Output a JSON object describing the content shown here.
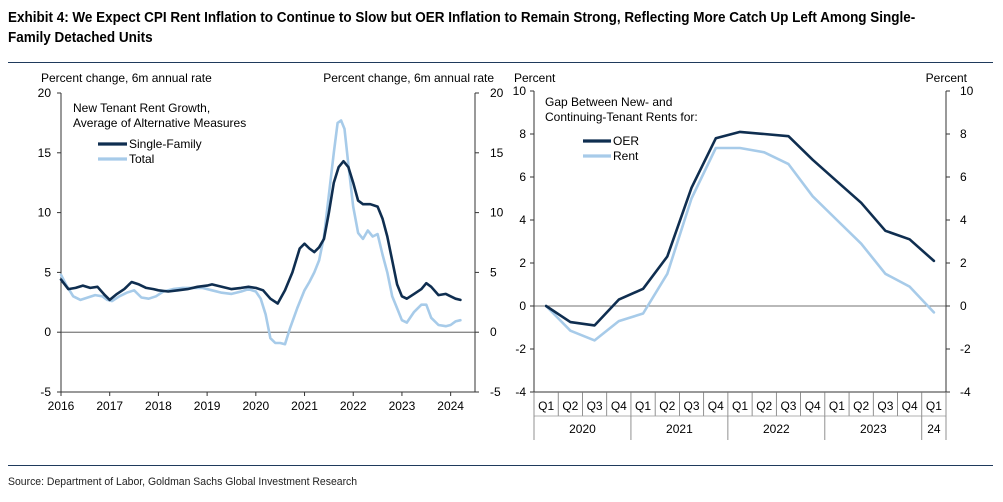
{
  "header": {
    "title": "Exhibit 4: We Expect CPI Rent Inflation to Continue to Slow but OER Inflation to Remain Strong, Reflecting More Catch Up Left Among Single-Family Detached Units"
  },
  "footer": {
    "source": "Source: Department of Labor, Goldman Sachs Global Investment Research"
  },
  "colors": {
    "dark_navy": "#0f2e50",
    "light_blue": "#a7cbe9",
    "rule": "#1f3a5c"
  },
  "chart_data": [
    {
      "type": "line",
      "title": "New Tenant Rent Growth,\nAverage of Alternative Measures",
      "title_lines": [
        "New Tenant Rent Growth,",
        "Average of Alternative Measures"
      ],
      "ylabel_left": "Percent change, 6m annual rate",
      "ylabel_right": "Percent change, 6m annual rate",
      "ylim": [
        -5,
        20
      ],
      "yticks": [
        -5,
        0,
        5,
        10,
        15,
        20
      ],
      "yticks_right": [
        -5,
        0,
        5,
        10,
        15,
        20
      ],
      "xlim": [
        2016,
        2024.5
      ],
      "xticks": [
        "2016",
        "2017",
        "2018",
        "2019",
        "2020",
        "2021",
        "2022",
        "2023",
        "2024"
      ],
      "grid": false,
      "legend_position": "top-left",
      "series": [
        {
          "name": "Single-Family",
          "color": "#0f2e50",
          "points": [
            [
              2016.0,
              4.4
            ],
            [
              2016.15,
              3.6
            ],
            [
              2016.3,
              3.7
            ],
            [
              2016.45,
              3.9
            ],
            [
              2016.6,
              3.7
            ],
            [
              2016.75,
              3.8
            ],
            [
              2016.9,
              3.1
            ],
            [
              2017.0,
              2.7
            ],
            [
              2017.15,
              3.2
            ],
            [
              2017.3,
              3.6
            ],
            [
              2017.45,
              4.2
            ],
            [
              2017.6,
              4.0
            ],
            [
              2017.75,
              3.7
            ],
            [
              2017.9,
              3.6
            ],
            [
              2018.0,
              3.5
            ],
            [
              2018.2,
              3.4
            ],
            [
              2018.4,
              3.5
            ],
            [
              2018.6,
              3.6
            ],
            [
              2018.8,
              3.8
            ],
            [
              2019.0,
              3.9
            ],
            [
              2019.1,
              4.0
            ],
            [
              2019.3,
              3.8
            ],
            [
              2019.5,
              3.6
            ],
            [
              2019.7,
              3.7
            ],
            [
              2019.85,
              3.8
            ],
            [
              2020.0,
              3.7
            ],
            [
              2020.15,
              3.5
            ],
            [
              2020.3,
              2.8
            ],
            [
              2020.45,
              2.4
            ],
            [
              2020.6,
              3.5
            ],
            [
              2020.75,
              5.0
            ],
            [
              2020.9,
              7.0
            ],
            [
              2021.0,
              7.4
            ],
            [
              2021.1,
              7.0
            ],
            [
              2021.2,
              6.7
            ],
            [
              2021.3,
              7.1
            ],
            [
              2021.4,
              7.8
            ],
            [
              2021.5,
              10.0
            ],
            [
              2021.6,
              12.5
            ],
            [
              2021.7,
              13.8
            ],
            [
              2021.8,
              14.3
            ],
            [
              2021.9,
              13.8
            ],
            [
              2022.0,
              12.5
            ],
            [
              2022.1,
              11.0
            ],
            [
              2022.2,
              10.7
            ],
            [
              2022.35,
              10.7
            ],
            [
              2022.5,
              10.5
            ],
            [
              2022.6,
              9.5
            ],
            [
              2022.7,
              8.0
            ],
            [
              2022.8,
              6.0
            ],
            [
              2022.9,
              4.0
            ],
            [
              2023.0,
              3.0
            ],
            [
              2023.1,
              2.8
            ],
            [
              2023.25,
              3.2
            ],
            [
              2023.4,
              3.6
            ],
            [
              2023.5,
              4.1
            ],
            [
              2023.6,
              3.8
            ],
            [
              2023.75,
              3.1
            ],
            [
              2023.9,
              3.2
            ],
            [
              2024.0,
              3.0
            ],
            [
              2024.1,
              2.8
            ],
            [
              2024.2,
              2.7
            ]
          ]
        },
        {
          "name": "Total",
          "color": "#a7cbe9",
          "points": [
            [
              2016.0,
              4.8
            ],
            [
              2016.1,
              4.0
            ],
            [
              2016.25,
              3.0
            ],
            [
              2016.4,
              2.7
            ],
            [
              2016.55,
              2.9
            ],
            [
              2016.7,
              3.1
            ],
            [
              2016.85,
              3.0
            ],
            [
              2016.95,
              2.7
            ],
            [
              2017.05,
              2.6
            ],
            [
              2017.2,
              3.0
            ],
            [
              2017.35,
              3.3
            ],
            [
              2017.5,
              3.5
            ],
            [
              2017.65,
              2.9
            ],
            [
              2017.8,
              2.8
            ],
            [
              2017.95,
              3.0
            ],
            [
              2018.1,
              3.4
            ],
            [
              2018.3,
              3.6
            ],
            [
              2018.5,
              3.7
            ],
            [
              2018.7,
              3.7
            ],
            [
              2018.9,
              3.7
            ],
            [
              2019.1,
              3.5
            ],
            [
              2019.3,
              3.3
            ],
            [
              2019.5,
              3.2
            ],
            [
              2019.7,
              3.4
            ],
            [
              2019.85,
              3.6
            ],
            [
              2020.0,
              3.4
            ],
            [
              2020.1,
              2.8
            ],
            [
              2020.2,
              1.5
            ],
            [
              2020.3,
              -0.5
            ],
            [
              2020.4,
              -0.9
            ],
            [
              2020.5,
              -0.9
            ],
            [
              2020.6,
              -1.0
            ],
            [
              2020.7,
              0.3
            ],
            [
              2020.85,
              2.0
            ],
            [
              2021.0,
              3.5
            ],
            [
              2021.1,
              4.2
            ],
            [
              2021.2,
              5.0
            ],
            [
              2021.3,
              6.0
            ],
            [
              2021.4,
              8.0
            ],
            [
              2021.5,
              11.5
            ],
            [
              2021.6,
              15.0
            ],
            [
              2021.68,
              17.5
            ],
            [
              2021.75,
              17.7
            ],
            [
              2021.82,
              17.0
            ],
            [
              2021.9,
              14.0
            ],
            [
              2022.0,
              10.5
            ],
            [
              2022.1,
              8.3
            ],
            [
              2022.2,
              7.8
            ],
            [
              2022.3,
              8.5
            ],
            [
              2022.4,
              8.0
            ],
            [
              2022.5,
              8.2
            ],
            [
              2022.6,
              6.5
            ],
            [
              2022.7,
              5.0
            ],
            [
              2022.8,
              3.0
            ],
            [
              2022.9,
              2.0
            ],
            [
              2023.0,
              1.0
            ],
            [
              2023.1,
              0.8
            ],
            [
              2023.25,
              1.7
            ],
            [
              2023.4,
              2.3
            ],
            [
              2023.5,
              2.3
            ],
            [
              2023.6,
              1.2
            ],
            [
              2023.75,
              0.6
            ],
            [
              2023.9,
              0.5
            ],
            [
              2024.0,
              0.6
            ],
            [
              2024.1,
              0.9
            ],
            [
              2024.2,
              1.0
            ]
          ]
        }
      ]
    },
    {
      "type": "line",
      "title": "Gap Between New- and\nContinuing-Tenant Rents for:",
      "title_lines": [
        "Gap Between New- and",
        "Continuing-Tenant Rents for:"
      ],
      "ylabel_left": "Percent",
      "ylabel_right": "Percent",
      "ylim": [
        -4,
        10
      ],
      "yticks": [
        -4,
        -2,
        0,
        2,
        4,
        6,
        8,
        10
      ],
      "yticks_right": [
        -4,
        -2,
        0,
        2,
        4,
        6,
        8,
        10
      ],
      "categories": [
        "Q1",
        "Q2",
        "Q3",
        "Q4",
        "Q1",
        "Q2",
        "Q3",
        "Q4",
        "Q1",
        "Q2",
        "Q3",
        "Q4",
        "Q1",
        "Q2",
        "Q3",
        "Q4",
        "Q1"
      ],
      "year_groups": [
        {
          "label": "2020",
          "count": 4
        },
        {
          "label": "2021",
          "count": 4
        },
        {
          "label": "2022",
          "count": 4
        },
        {
          "label": "2023",
          "count": 4
        },
        {
          "label": "24",
          "count": 1
        }
      ],
      "grid": false,
      "legend_position": "top-left",
      "series": [
        {
          "name": "OER",
          "color": "#0f2e50",
          "values": [
            0.0,
            -0.75,
            -0.9,
            0.3,
            0.8,
            2.3,
            5.5,
            7.8,
            8.1,
            8.0,
            7.9,
            6.8,
            5.8,
            4.8,
            3.5,
            3.1,
            2.1
          ]
        },
        {
          "name": "Rent",
          "color": "#a7cbe9",
          "values": [
            0.0,
            -1.15,
            -1.6,
            -0.7,
            -0.35,
            1.5,
            5.0,
            7.35,
            7.35,
            7.15,
            6.6,
            5.1,
            4.0,
            2.9,
            1.5,
            0.9,
            -0.3
          ]
        }
      ]
    }
  ]
}
